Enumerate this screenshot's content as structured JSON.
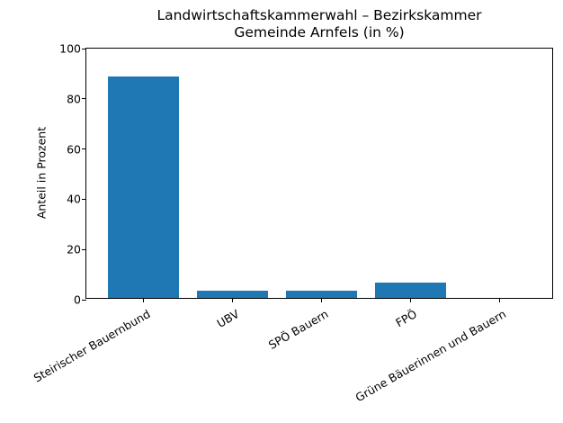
{
  "chart_data": {
    "type": "bar",
    "title": "Landwirtschaftskammerwahl – Bezirkskammer\nGemeinde Arnfels (in %)",
    "title_lines": [
      "Landwirtschaftskammerwahl – Bezirkskammer",
      "Gemeinde Arnfels (in %)"
    ],
    "xlabel": "",
    "ylabel": "Anteil in Prozent",
    "ylim": [
      0,
      100
    ],
    "yticks": [
      "0",
      "20",
      "40",
      "60",
      "80",
      "100"
    ],
    "categories": [
      "Steirischer Bauernbund",
      "UBV",
      "SPÖ Bauern",
      "FPÖ",
      "Grüne Bäuerinnen und Bauern"
    ],
    "values": [
      88,
      3,
      3,
      6,
      0
    ],
    "bar_color": "#1f77b4",
    "grid": false,
    "legend": null
  }
}
